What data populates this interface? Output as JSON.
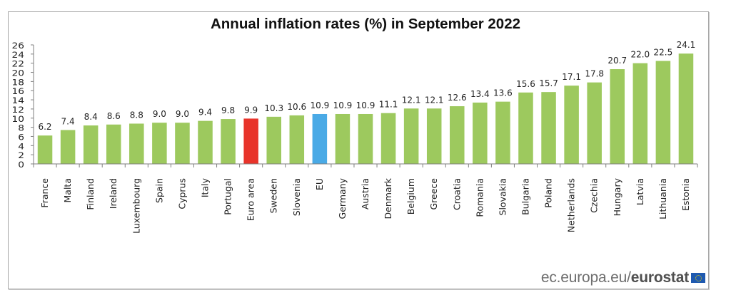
{
  "chart_data": {
    "type": "bar",
    "title": "Annual inflation rates (%) in September 2022",
    "xlabel": "",
    "ylabel": "",
    "ylim": [
      0,
      26
    ],
    "yticks": [
      0,
      2,
      4,
      6,
      8,
      10,
      12,
      14,
      16,
      18,
      20,
      22,
      24,
      26
    ],
    "grid": false,
    "legend": "none",
    "categories": [
      "France",
      "Malta",
      "Finland",
      "Ireland",
      "Luxembourg",
      "Spain",
      "Cyprus",
      "Italy",
      "Portugal",
      "Euro area",
      "Sweden",
      "Slovenia",
      "EU",
      "Germany",
      "Austria",
      "Denmark",
      "Belgium",
      "Greece",
      "Croatia",
      "Romania",
      "Slovakia",
      "Bulgaria",
      "Poland",
      "Netherlands",
      "Czechia",
      "Hungary",
      "Latvia",
      "Lithuania",
      "Estonia"
    ],
    "values": [
      6.2,
      7.4,
      8.4,
      8.6,
      8.8,
      9.0,
      9.0,
      9.4,
      9.8,
      9.9,
      10.3,
      10.6,
      10.9,
      10.9,
      10.9,
      11.1,
      12.1,
      12.1,
      12.6,
      13.4,
      13.6,
      15.6,
      15.7,
      17.1,
      17.8,
      20.7,
      22.0,
      22.5,
      24.1
    ],
    "data_labels": [
      "6.2",
      "7.4",
      "8.4",
      "8.6",
      "8.8",
      "9.0",
      "9.0",
      "9.4",
      "9.8",
      "9.9",
      "10.3",
      "10.6",
      "10.9",
      "10.9",
      "10.9",
      "11.1",
      "12.1",
      "12.1",
      "12.6",
      "13.4",
      "13.6",
      "15.6",
      "15.7",
      "17.1",
      "17.8",
      "20.7",
      "22.0",
      "22.5",
      "24.1"
    ],
    "colors": {
      "default": "#9dc95e",
      "highlight": {
        "Euro area": "#e8332a",
        "EU": "#4aaae6"
      }
    }
  },
  "footer": {
    "source_plain": "ec.europa.eu/",
    "source_bold": "eurostat",
    "logo_icon": "eu-flag-icon"
  }
}
